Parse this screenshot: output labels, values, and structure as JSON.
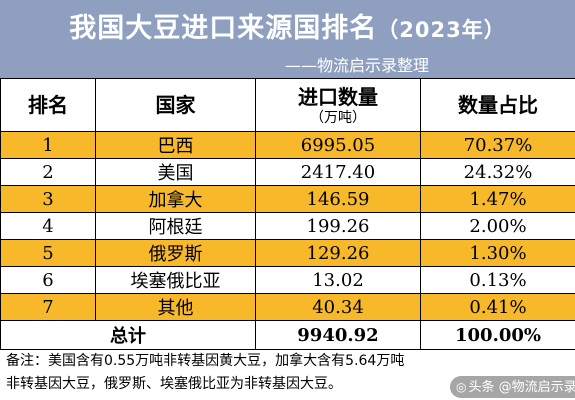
{
  "header": {
    "title": "我国大豆进口来源国排名",
    "year": "（2023年）",
    "source": "——物流启示录整理"
  },
  "columns": {
    "rank": "排名",
    "country": "国家",
    "volume": "进口数量",
    "volume_unit": "（万吨）",
    "share": "数量占比"
  },
  "rows": [
    {
      "rank": "1",
      "country": "巴西",
      "volume": "6995.05",
      "share": "70.37%"
    },
    {
      "rank": "2",
      "country": "美国",
      "volume": "2417.40",
      "share": "24.32%"
    },
    {
      "rank": "3",
      "country": "加拿大",
      "volume": "146.59",
      "share": "1.47%"
    },
    {
      "rank": "4",
      "country": "阿根廷",
      "volume": "199.26",
      "share": "2.00%"
    },
    {
      "rank": "5",
      "country": "俄罗斯",
      "volume": "129.26",
      "share": "1.30%"
    },
    {
      "rank": "6",
      "country": "埃塞俄比亚",
      "volume": "13.02",
      "share": "0.13%"
    },
    {
      "rank": "7",
      "country": "其他",
      "volume": "40.34",
      "share": "0.41%"
    }
  ],
  "total": {
    "label": "总计",
    "volume": "9940.92",
    "share": "100.00%"
  },
  "note": {
    "line1": "备注：美国含有0.55万吨非转基因黄大豆，加拿大含有5.64万吨",
    "line2": "非转基因大豆，俄罗斯、埃塞俄比亚为非转基因大豆。"
  },
  "watermark": {
    "icon": "toutiao-icon",
    "text": "头条 @物流启示录"
  },
  "colors": {
    "header_bg": "#8f9fbf",
    "highlight_row": "#f7b92a",
    "normal_row": "#ffffff"
  }
}
